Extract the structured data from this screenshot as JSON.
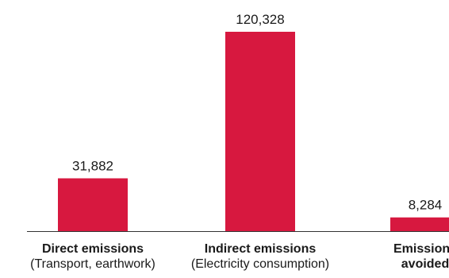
{
  "chart_data": {
    "type": "bar",
    "title": "",
    "xlabel": "",
    "ylabel": "",
    "categories": [
      {
        "name": "Direct emissions",
        "sub": "(Transport, earthwork)"
      },
      {
        "name": "Indirect emissions",
        "sub": "(Electricity consumption)"
      },
      {
        "name": "Emissions",
        "sub": "avoided"
      }
    ],
    "values": [
      31882,
      120328,
      8284
    ],
    "value_labels": [
      "31,882",
      "120,328",
      "8,284"
    ],
    "ylim": [
      0,
      130000
    ],
    "grid": false,
    "colors": {
      "bar": "#D7183F",
      "axis": "#333333",
      "text": "#1a1a1a"
    }
  }
}
